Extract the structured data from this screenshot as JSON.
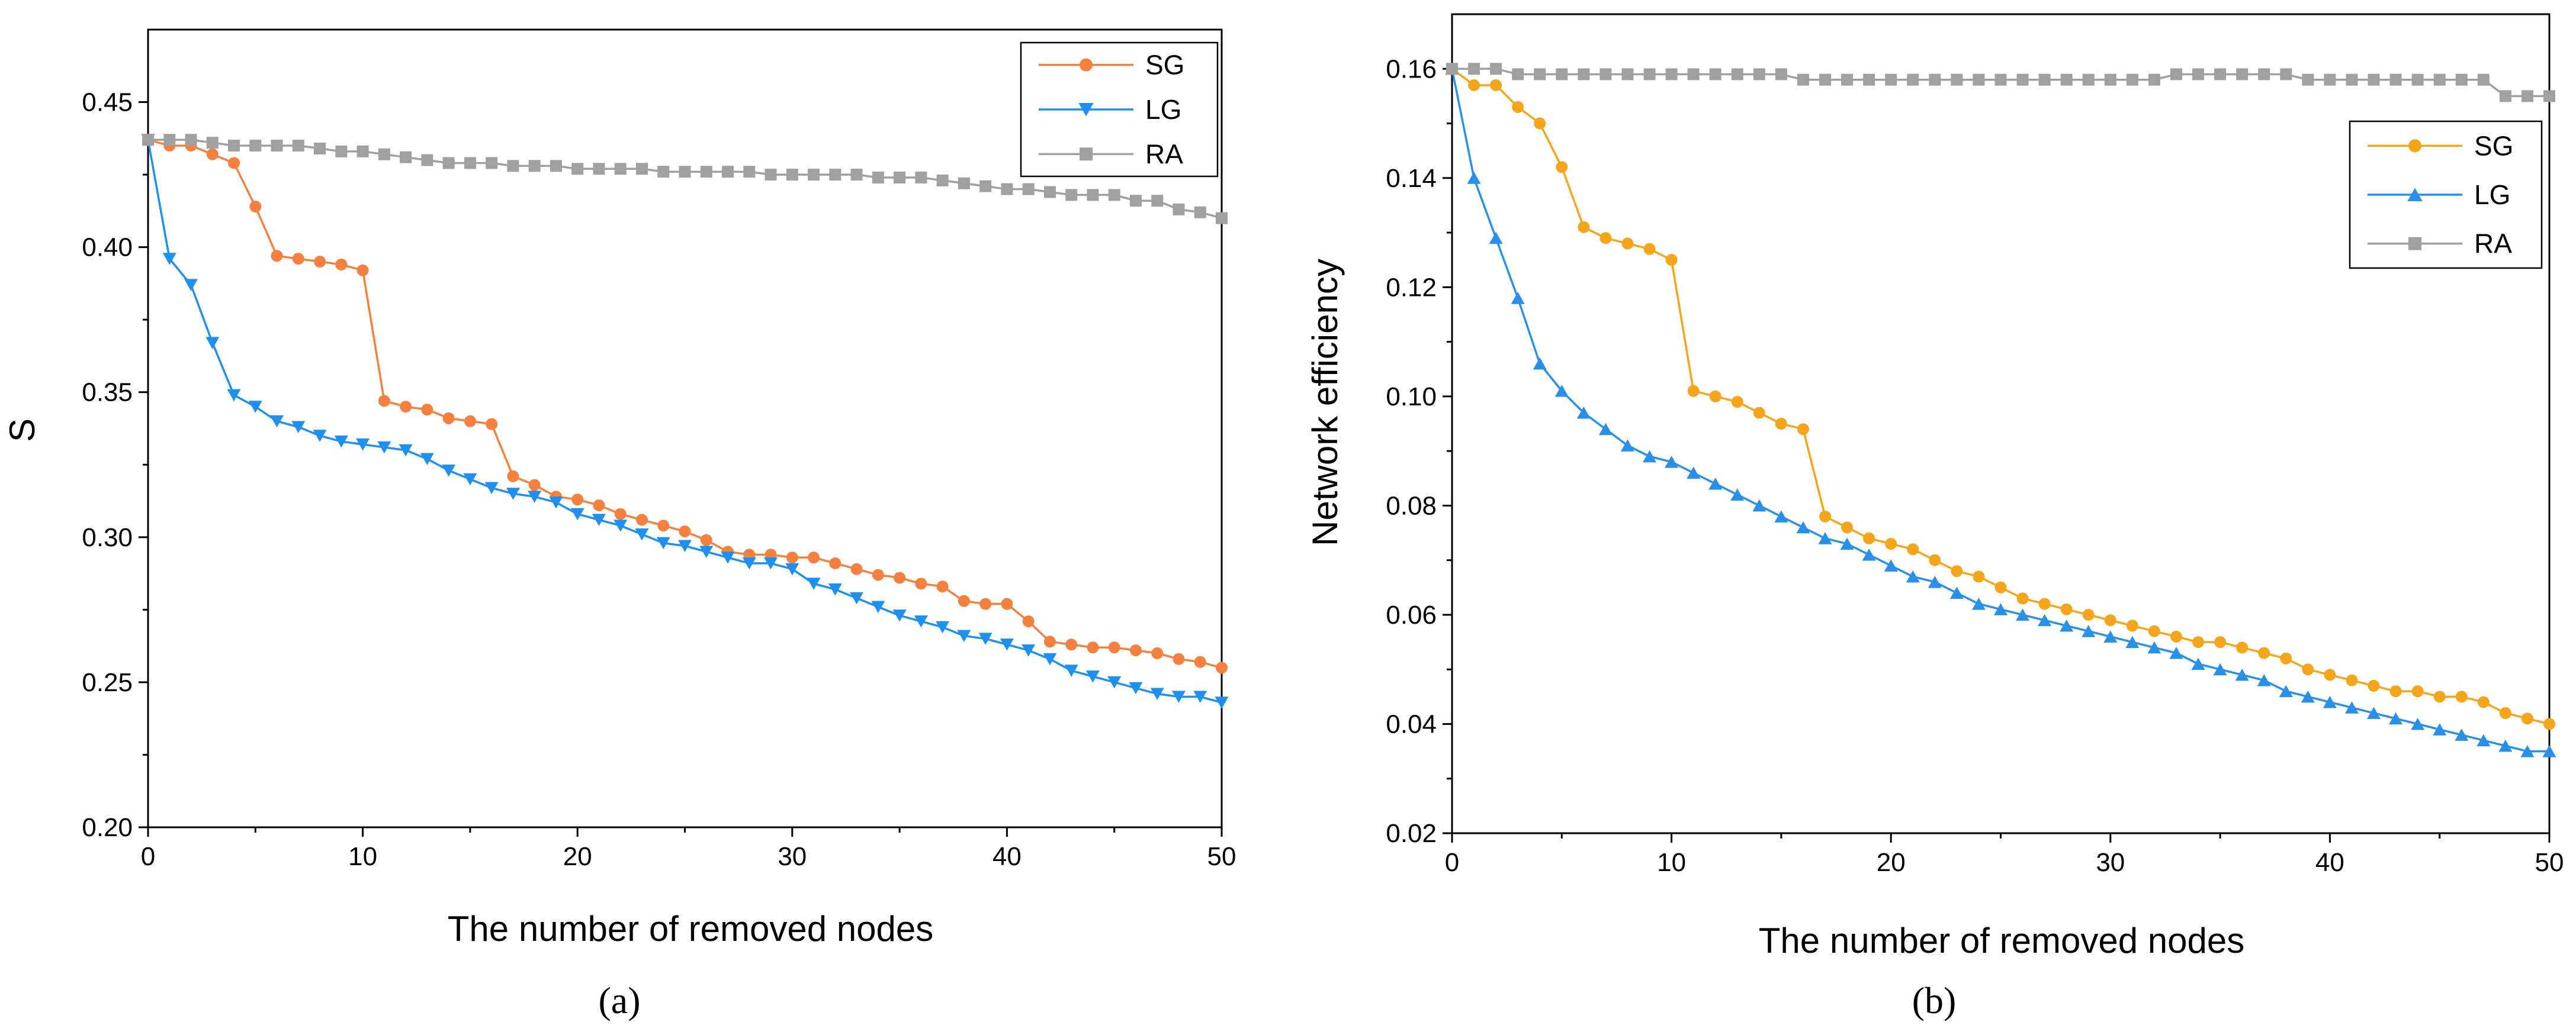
{
  "chart_data": [
    {
      "type": "line",
      "panel_label": "(a)",
      "xlabel": "The number of removed nodes",
      "ylabel": "S",
      "xlim": [
        0,
        50
      ],
      "ylim": [
        0.2,
        0.475
      ],
      "x_ticks": [
        0,
        10,
        20,
        30,
        40,
        50
      ],
      "y_ticks": [
        0.2,
        0.25,
        0.3,
        0.35,
        0.4,
        0.45
      ],
      "x_tick_labels": [
        "0",
        "10",
        "20",
        "30",
        "40",
        "50"
      ],
      "y_tick_labels": [
        "0.20",
        "0.25",
        "0.30",
        "0.35",
        "0.40",
        "0.45"
      ],
      "grid": false,
      "legend_position": "top-right",
      "series": [
        {
          "name": "SG",
          "color": "#F4813F",
          "marker": "circle",
          "values": [
            0.437,
            0.435,
            0.435,
            0.432,
            0.429,
            0.414,
            0.397,
            0.396,
            0.395,
            0.394,
            0.392,
            0.347,
            0.345,
            0.344,
            0.341,
            0.34,
            0.339,
            0.321,
            0.318,
            0.314,
            0.313,
            0.311,
            0.308,
            0.306,
            0.304,
            0.302,
            0.299,
            0.295,
            0.294,
            0.294,
            0.293,
            0.293,
            0.291,
            0.289,
            0.287,
            0.286,
            0.284,
            0.283,
            0.278,
            0.277,
            0.277,
            0.271,
            0.264,
            0.263,
            0.262,
            0.262,
            0.261,
            0.26,
            0.258,
            0.257,
            0.255
          ]
        },
        {
          "name": "LG",
          "color": "#1F8FF0",
          "marker": "triangle-down",
          "values": [
            0.437,
            0.396,
            0.387,
            0.367,
            0.349,
            0.345,
            0.34,
            0.338,
            0.335,
            0.333,
            0.332,
            0.331,
            0.33,
            0.327,
            0.323,
            0.32,
            0.317,
            0.315,
            0.314,
            0.312,
            0.308,
            0.306,
            0.304,
            0.301,
            0.298,
            0.297,
            0.295,
            0.293,
            0.291,
            0.291,
            0.289,
            0.284,
            0.282,
            0.279,
            0.276,
            0.273,
            0.271,
            0.269,
            0.266,
            0.265,
            0.263,
            0.261,
            0.258,
            0.254,
            0.252,
            0.25,
            0.248,
            0.246,
            0.245,
            0.245,
            0.243
          ]
        },
        {
          "name": "RA",
          "color": "#A0A0A0",
          "marker": "square",
          "values": [
            0.437,
            0.437,
            0.437,
            0.436,
            0.435,
            0.435,
            0.435,
            0.435,
            0.434,
            0.433,
            0.433,
            0.432,
            0.431,
            0.43,
            0.429,
            0.429,
            0.429,
            0.428,
            0.428,
            0.428,
            0.427,
            0.427,
            0.427,
            0.427,
            0.426,
            0.426,
            0.426,
            0.426,
            0.426,
            0.425,
            0.425,
            0.425,
            0.425,
            0.425,
            0.424,
            0.424,
            0.424,
            0.423,
            0.422,
            0.421,
            0.42,
            0.42,
            0.419,
            0.418,
            0.418,
            0.418,
            0.416,
            0.416,
            0.413,
            0.412,
            0.41
          ]
        }
      ]
    },
    {
      "type": "line",
      "panel_label": "(b)",
      "xlabel": "The number of removed nodes",
      "ylabel": "Network efficiency",
      "xlim": [
        0,
        50
      ],
      "ylim": [
        0.02,
        0.17
      ],
      "x_ticks": [
        0,
        10,
        20,
        30,
        40,
        50
      ],
      "y_ticks": [
        0.02,
        0.04,
        0.06,
        0.08,
        0.1,
        0.12,
        0.14,
        0.16
      ],
      "x_tick_labels": [
        "0",
        "10",
        "20",
        "30",
        "40",
        "50"
      ],
      "y_tick_labels": [
        "0.02",
        "0.04",
        "0.06",
        "0.08",
        "0.10",
        "0.12",
        "0.14",
        "0.16"
      ],
      "grid": false,
      "legend_position": "right",
      "series": [
        {
          "name": "SG",
          "color": "#F3A61C",
          "marker": "circle",
          "values": [
            0.16,
            0.157,
            0.157,
            0.153,
            0.15,
            0.142,
            0.131,
            0.129,
            0.128,
            0.127,
            0.125,
            0.101,
            0.1,
            0.099,
            0.097,
            0.095,
            0.094,
            0.078,
            0.076,
            0.074,
            0.073,
            0.072,
            0.07,
            0.068,
            0.067,
            0.065,
            0.063,
            0.062,
            0.061,
            0.06,
            0.059,
            0.058,
            0.057,
            0.056,
            0.055,
            0.055,
            0.054,
            0.053,
            0.052,
            0.05,
            0.049,
            0.048,
            0.047,
            0.046,
            0.046,
            0.045,
            0.045,
            0.044,
            0.042,
            0.041,
            0.04
          ]
        },
        {
          "name": "LG",
          "color": "#2A8FE6",
          "marker": "triangle-up",
          "values": [
            0.16,
            0.14,
            0.129,
            0.118,
            0.106,
            0.101,
            0.097,
            0.094,
            0.091,
            0.089,
            0.088,
            0.086,
            0.084,
            0.082,
            0.08,
            0.078,
            0.076,
            0.074,
            0.073,
            0.071,
            0.069,
            0.067,
            0.066,
            0.064,
            0.062,
            0.061,
            0.06,
            0.059,
            0.058,
            0.057,
            0.056,
            0.055,
            0.054,
            0.053,
            0.051,
            0.05,
            0.049,
            0.048,
            0.046,
            0.045,
            0.044,
            0.043,
            0.042,
            0.041,
            0.04,
            0.039,
            0.038,
            0.037,
            0.036,
            0.035,
            0.035
          ]
        },
        {
          "name": "RA",
          "color": "#A0A0A0",
          "marker": "square",
          "values": [
            0.16,
            0.16,
            0.16,
            0.159,
            0.159,
            0.159,
            0.159,
            0.159,
            0.159,
            0.159,
            0.159,
            0.159,
            0.159,
            0.159,
            0.159,
            0.159,
            0.158,
            0.158,
            0.158,
            0.158,
            0.158,
            0.158,
            0.158,
            0.158,
            0.158,
            0.158,
            0.158,
            0.158,
            0.158,
            0.158,
            0.158,
            0.158,
            0.158,
            0.159,
            0.159,
            0.159,
            0.159,
            0.159,
            0.159,
            0.158,
            0.158,
            0.158,
            0.158,
            0.158,
            0.158,
            0.158,
            0.158,
            0.158,
            0.155,
            0.155,
            0.155
          ]
        }
      ]
    }
  ]
}
